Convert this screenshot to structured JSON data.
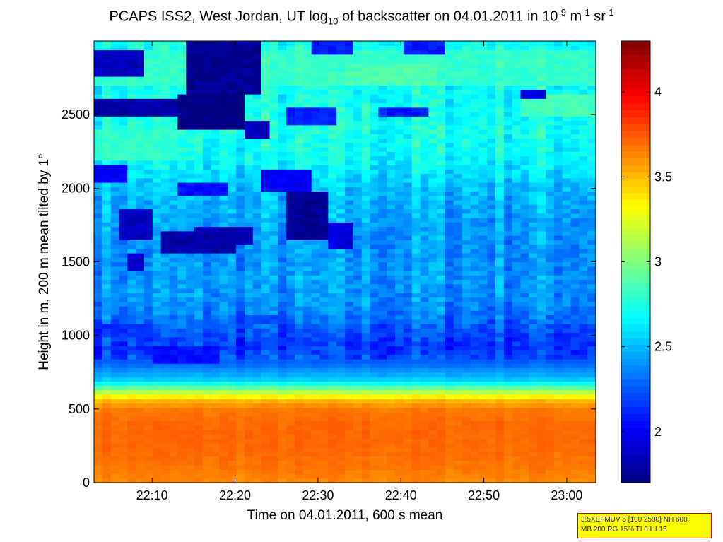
{
  "chart_data": {
    "type": "heatmap",
    "title_parts": {
      "pre": "PCAPS ISS2, West Jordan, UT log",
      "sub10": "10",
      "mid": " of backscatter on 04.01.2011 in 10",
      "exp1": "-9",
      "unit_m": " m",
      "exp2": "-1",
      "unit_sr": " sr",
      "exp3": "-1"
    },
    "xlabel": "Time on 04.01.2011, 600 s mean",
    "ylabel": "Height in m, 200 m mean tilted by 1°",
    "x_range_minutes": [
      1323,
      1383.5
    ],
    "x_ticks": [
      {
        "value": 1330,
        "label": "22:10"
      },
      {
        "value": 1340,
        "label": "22:20"
      },
      {
        "value": 1350,
        "label": "22:30"
      },
      {
        "value": 1360,
        "label": "22:40"
      },
      {
        "value": 1370,
        "label": "22:50"
      },
      {
        "value": 1380,
        "label": "23:00"
      }
    ],
    "ylim": [
      0,
      3000
    ],
    "y_ticks": [
      {
        "value": 0,
        "label": "0"
      },
      {
        "value": 500,
        "label": "500"
      },
      {
        "value": 1000,
        "label": "1000"
      },
      {
        "value": 1500,
        "label": "1500"
      },
      {
        "value": 2000,
        "label": "2000"
      },
      {
        "value": 2500,
        "label": "2500"
      }
    ],
    "colorbar": {
      "colormap": "jet",
      "clim": [
        1.7,
        4.3
      ],
      "ticks": [
        {
          "value": 2,
          "label": "2"
        },
        {
          "value": 2.5,
          "label": "2.5"
        },
        {
          "value": 3,
          "label": "3"
        },
        {
          "value": 3.5,
          "label": "3.5"
        },
        {
          "value": 4,
          "label": "4"
        }
      ]
    },
    "profile": [
      {
        "height": 0,
        "value": 3.62
      },
      {
        "height": 100,
        "value": 3.67
      },
      {
        "height": 200,
        "value": 3.7
      },
      {
        "height": 300,
        "value": 3.71
      },
      {
        "height": 400,
        "value": 3.71
      },
      {
        "height": 500,
        "value": 3.66
      },
      {
        "height": 560,
        "value": 3.5
      },
      {
        "height": 600,
        "value": 3.25
      },
      {
        "height": 650,
        "value": 2.9
      },
      {
        "height": 700,
        "value": 2.55
      },
      {
        "height": 800,
        "value": 2.3
      },
      {
        "height": 900,
        "value": 2.15
      },
      {
        "height": 1000,
        "value": 2.2
      },
      {
        "height": 1200,
        "value": 2.38
      },
      {
        "height": 1400,
        "value": 2.42
      },
      {
        "height": 1600,
        "value": 2.4
      },
      {
        "height": 1800,
        "value": 2.45
      },
      {
        "height": 2000,
        "value": 2.52
      },
      {
        "height": 2200,
        "value": 2.68
      },
      {
        "height": 2400,
        "value": 2.72
      },
      {
        "height": 2600,
        "value": 2.7
      },
      {
        "height": 2800,
        "value": 2.72
      },
      {
        "height": 3000,
        "value": 2.72
      }
    ],
    "low_regions": [
      {
        "t": [
          1326,
          1330
        ],
        "h": [
          1650,
          1850
        ],
        "value": 1.85
      },
      {
        "t": [
          1327,
          1329
        ],
        "h": [
          1450,
          1550
        ],
        "value": 1.9
      },
      {
        "t": [
          1331,
          1340
        ],
        "h": [
          1550,
          1700
        ],
        "value": 1.8
      },
      {
        "t": [
          1335,
          1342
        ],
        "h": [
          1620,
          1730
        ],
        "value": 1.85
      },
      {
        "t": [
          1346.5,
          1351
        ],
        "h": [
          1650,
          1980
        ],
        "value": 1.75
      },
      {
        "t": [
          1351,
          1354
        ],
        "h": [
          1600,
          1780
        ],
        "value": 1.95
      },
      {
        "t": [
          1323,
          1327
        ],
        "h": [
          2050,
          2150
        ],
        "value": 2.0
      },
      {
        "t": [
          1333,
          1339
        ],
        "h": [
          1950,
          2050
        ],
        "value": 2.05
      },
      {
        "t": [
          1343,
          1349
        ],
        "h": [
          1980,
          2120
        ],
        "value": 2.0
      },
      {
        "t": [
          1323,
          1333
        ],
        "h": [
          2480,
          2600
        ],
        "value": 1.8
      },
      {
        "t": [
          1333,
          1341
        ],
        "h": [
          2400,
          2650
        ],
        "value": 1.7
      },
      {
        "t": [
          1334,
          1343
        ],
        "h": [
          2650,
          3000
        ],
        "value": 1.75
      },
      {
        "t": [
          1323,
          1329
        ],
        "h": [
          2750,
          2950
        ],
        "value": 1.85
      },
      {
        "t": [
          1341,
          1344
        ],
        "h": [
          2330,
          2450
        ],
        "value": 1.85
      },
      {
        "t": [
          1346,
          1352
        ],
        "h": [
          2440,
          2540
        ],
        "value": 2.1
      },
      {
        "t": [
          1357,
          1363
        ],
        "h": [
          2480,
          2560
        ],
        "value": 2.1
      },
      {
        "t": [
          1374,
          1377
        ],
        "h": [
          2600,
          2680
        ],
        "value": 1.95
      },
      {
        "t": [
          1349,
          1354
        ],
        "h": [
          2900,
          3000
        ],
        "value": 2.1
      },
      {
        "t": [
          1360,
          1365
        ],
        "h": [
          2900,
          3000
        ],
        "value": 2.1
      },
      {
        "t": [
          1330,
          1338
        ],
        "h": [
          820,
          920
        ],
        "value": 2.05
      },
      {
        "t": [
          1324,
          1330
        ],
        "h": [
          1000,
          1080
        ],
        "value": 2.15
      },
      {
        "t": [
          1340,
          1346
        ],
        "h": [
          1080,
          1150
        ],
        "value": 2.2
      }
    ],
    "high_regions": [
      {
        "t": [
          1323,
          1383.5
        ],
        "h": [
          2700,
          2950
        ],
        "value": 2.8
      },
      {
        "t": [
          1323,
          1333
        ],
        "h": [
          2200,
          2400
        ],
        "value": 2.8
      },
      {
        "t": [
          1353,
          1364
        ],
        "h": [
          2700,
          2850
        ],
        "value": 2.88
      },
      {
        "t": [
          1374,
          1383.5
        ],
        "h": [
          2500,
          2650
        ],
        "value": 2.85
      }
    ]
  },
  "info_box": {
    "line1": "3.5XEFMUV 5 [100 2500] NH 600",
    "line2": "MB 200 RG 15% TI 0 HI 15"
  }
}
